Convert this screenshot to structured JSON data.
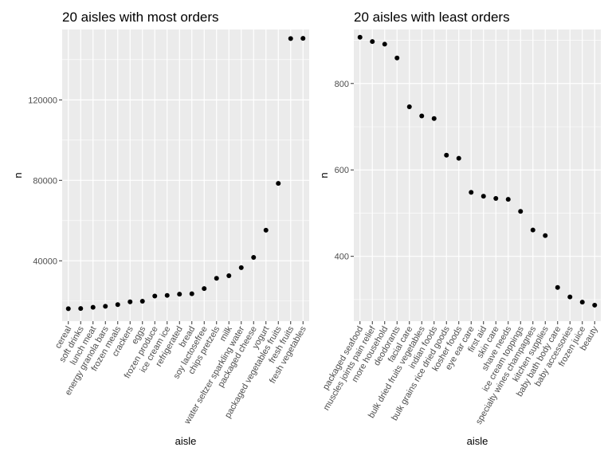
{
  "chart_data": [
    {
      "type": "scatter",
      "title": "20 aisles with most orders",
      "xlabel": "aisle",
      "ylabel": "n",
      "ylim": [
        10000,
        155000
      ],
      "yticks": [
        40000,
        80000,
        120000
      ],
      "ytick_labels": [
        "40000",
        "80000",
        "120000"
      ],
      "grid": true,
      "point_color": "#000000",
      "panel_color": "#ebebeb",
      "categories": [
        "cereal",
        "soft drinks",
        "lunch meat",
        "energy granola bars",
        "frozen meals",
        "crackers",
        "eggs",
        "frozen produce",
        "ice cream ice",
        "refrigerated",
        "bread",
        "soy lactosefree",
        "chips pretzels",
        "milk",
        "water seltzer sparkling water",
        "packaged cheese",
        "yogurt",
        "packaged vegetables fruits",
        "fresh fruits",
        "fresh vegetables"
      ],
      "values": [
        16200,
        16300,
        16900,
        17400,
        18200,
        19600,
        19900,
        22500,
        22800,
        23400,
        23600,
        26200,
        31300,
        32600,
        36600,
        41700,
        55200,
        78500,
        150500,
        150600
      ]
    },
    {
      "type": "scatter",
      "title": "20 aisles with least orders",
      "xlabel": "aisle",
      "ylabel": "n",
      "ylim": [
        250,
        925
      ],
      "yticks": [
        400,
        600,
        800
      ],
      "ytick_labels": [
        "400",
        "600",
        "800"
      ],
      "grid": true,
      "point_color": "#000000",
      "panel_color": "#ebebeb",
      "categories": [
        "packaged seafood",
        "muscles joints pain relief",
        "more household",
        "deodorants",
        "facial care",
        "bulk dried fruits vegetables",
        "indian foods",
        "bulk grains rice dried goods",
        "kosher foods",
        "eye ear care",
        "first aid",
        "skin care",
        "shave needs",
        "ice cream toppings",
        "specialty wines champagnes",
        "kitchen supplies",
        "baby bath body care",
        "baby accessories",
        "frozen juice",
        "beauty"
      ],
      "values": [
        907,
        897,
        891,
        859,
        746,
        725,
        719,
        634,
        627,
        548,
        539,
        534,
        532,
        504,
        461,
        448,
        328,
        306,
        294,
        287
      ]
    }
  ]
}
